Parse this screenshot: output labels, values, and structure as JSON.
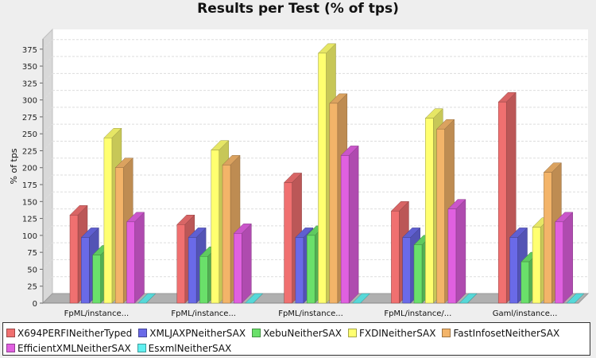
{
  "chart_data": {
    "type": "bar",
    "title": "Results per Test (% of tps)",
    "xlabel": "",
    "ylabel": "% of tps",
    "ylim": [
      0,
      390
    ],
    "yticks": [
      0,
      25,
      50,
      75,
      100,
      125,
      150,
      175,
      200,
      225,
      250,
      275,
      300,
      325,
      350,
      375
    ],
    "grid": true,
    "legend_position": "bottom",
    "categories": [
      "FpML/instance...",
      "FpML/instance...",
      "FpML/instance...",
      "FpML/instance/...",
      "Gaml/instance..."
    ],
    "series": [
      {
        "name": "X694PERFINeitherTyped",
        "color": "#f07070",
        "values": [
          130,
          116,
          178,
          136,
          297
        ]
      },
      {
        "name": "XMLJAXPNeitherSAX",
        "color": "#6a6ae8",
        "values": [
          97,
          97,
          97,
          97,
          97
        ]
      },
      {
        "name": "XebuNeitherSAX",
        "color": "#6ae06a",
        "values": [
          71,
          69,
          100,
          86,
          61
        ]
      },
      {
        "name": "FXDINeitherSAX",
        "color": "#ffff70",
        "values": [
          244,
          226,
          369,
          273,
          112
        ]
      },
      {
        "name": "FastInfosetNeitherSAX",
        "color": "#f3b469",
        "values": [
          200,
          204,
          295,
          257,
          193
        ]
      },
      {
        "name": "EfficientXMLNeitherSAX",
        "color": "#e060e0",
        "values": [
          120,
          103,
          218,
          139,
          120
        ]
      },
      {
        "name": "EsxmlNeitherSAX",
        "color": "#60f0f0",
        "values": [
          0,
          0,
          0,
          0,
          0
        ]
      }
    ]
  }
}
